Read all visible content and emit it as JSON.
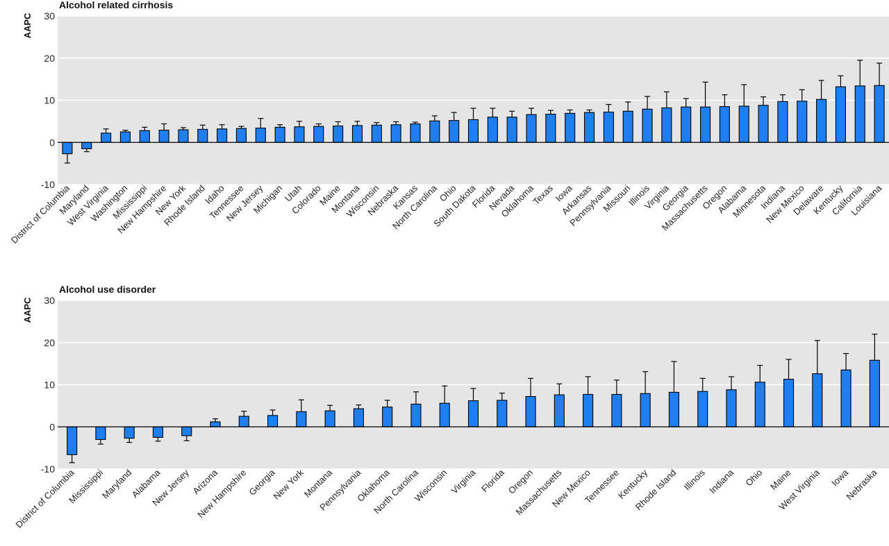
{
  "chart_data": [
    {
      "type": "bar",
      "title": "Alcohol related cirrhosis",
      "ylabel": "AAPC",
      "xlabel": "",
      "ylim": [
        -10,
        30
      ],
      "yticks": [
        -10,
        0,
        10,
        20,
        30
      ],
      "grid": true,
      "bar_color": "#1f7ff0",
      "error_bars": "upper",
      "categories": [
        "District of Columbia",
        "Maryland",
        "West Virginia",
        "Washington",
        "Mississippi",
        "New Hampshire",
        "New York",
        "Rhode Island",
        "Idaho",
        "Tennessee",
        "New Jersey",
        "Michigan",
        "Utah",
        "Colorado",
        "Maine",
        "Montana",
        "Wisconsin",
        "Nebraska",
        "Kansas",
        "North Carolina",
        "Ohio",
        "South Dakota",
        "Florida",
        "Nevada",
        "Oklahoma",
        "Texas",
        "Iowa",
        "Arkansas",
        "Pennsylvania",
        "Missouri",
        "Illinois",
        "Virginia",
        "Georgia",
        "Massachusetts",
        "Oregon",
        "Alabama",
        "Minnesota",
        "Indiana",
        "New Mexico",
        "Delaware",
        "Kentucky",
        "California",
        "Louisiana"
      ],
      "values": [
        -2.7,
        -1.5,
        2.2,
        2.5,
        2.8,
        2.9,
        3.0,
        3.1,
        3.2,
        3.3,
        3.4,
        3.6,
        3.7,
        3.8,
        3.9,
        4.0,
        4.1,
        4.2,
        4.4,
        5.1,
        5.2,
        5.4,
        6.0,
        6.0,
        6.6,
        6.7,
        6.9,
        7.1,
        7.2,
        7.4,
        7.9,
        8.2,
        8.4,
        8.4,
        8.5,
        8.6,
        8.8,
        9.7,
        9.8,
        10.2,
        13.2,
        13.4,
        13.5
      ],
      "error_upper": [
        -4.9,
        -2.2,
        3.2,
        2.9,
        3.6,
        4.4,
        3.5,
        4.1,
        4.2,
        3.8,
        5.7,
        4.2,
        5.0,
        4.4,
        4.9,
        5.0,
        4.7,
        4.9,
        4.8,
        6.3,
        7.1,
        8.1,
        8.1,
        7.4,
        8.1,
        7.6,
        7.7,
        7.7,
        9.0,
        9.6,
        10.9,
        12.0,
        10.4,
        14.3,
        11.3,
        13.7,
        10.8,
        11.3,
        12.5,
        14.7,
        15.8,
        19.5,
        18.8
      ]
    },
    {
      "type": "bar",
      "title": "Alcohol use disorder",
      "ylabel": "AAPC",
      "xlabel": "",
      "ylim": [
        -10,
        30
      ],
      "yticks": [
        -10,
        0,
        10,
        20,
        30
      ],
      "grid": true,
      "bar_color": "#1f7ff0",
      "error_bars": "upper",
      "categories": [
        "District of Columbia",
        "Mississippi",
        "Maryland",
        "Alabama",
        "New Jersey",
        "Arizona",
        "New Hampshire",
        "Georgia",
        "New York",
        "Montana",
        "Pennsylvania",
        "Oklahoma",
        "North Carolina",
        "Wisconsin",
        "Virginia",
        "Florida",
        "Oregon",
        "Massachusetts",
        "New Mexico",
        "Tennessee",
        "Kentucky",
        "Rhode Island",
        "Illinois",
        "Indiana",
        "Ohio",
        "Maine",
        "West Virginia",
        "Iowa",
        "Nebraska"
      ],
      "values": [
        -6.6,
        -3.0,
        -2.7,
        -2.5,
        -2.1,
        1.2,
        2.5,
        2.7,
        3.6,
        3.8,
        4.3,
        4.7,
        5.4,
        5.6,
        6.2,
        6.3,
        7.2,
        7.6,
        7.7,
        7.7,
        7.9,
        8.2,
        8.4,
        8.8,
        10.6,
        11.3,
        12.6,
        13.5,
        15.8
      ],
      "error_upper": [
        -8.5,
        -4.1,
        -3.7,
        -3.4,
        -3.3,
        1.9,
        3.7,
        4.0,
        6.4,
        5.1,
        5.2,
        6.3,
        8.3,
        9.7,
        9.1,
        8.0,
        11.5,
        10.2,
        11.9,
        11.1,
        13.1,
        15.5,
        11.5,
        11.9,
        14.6,
        16.0,
        20.5,
        17.4,
        22.0
      ]
    }
  ]
}
